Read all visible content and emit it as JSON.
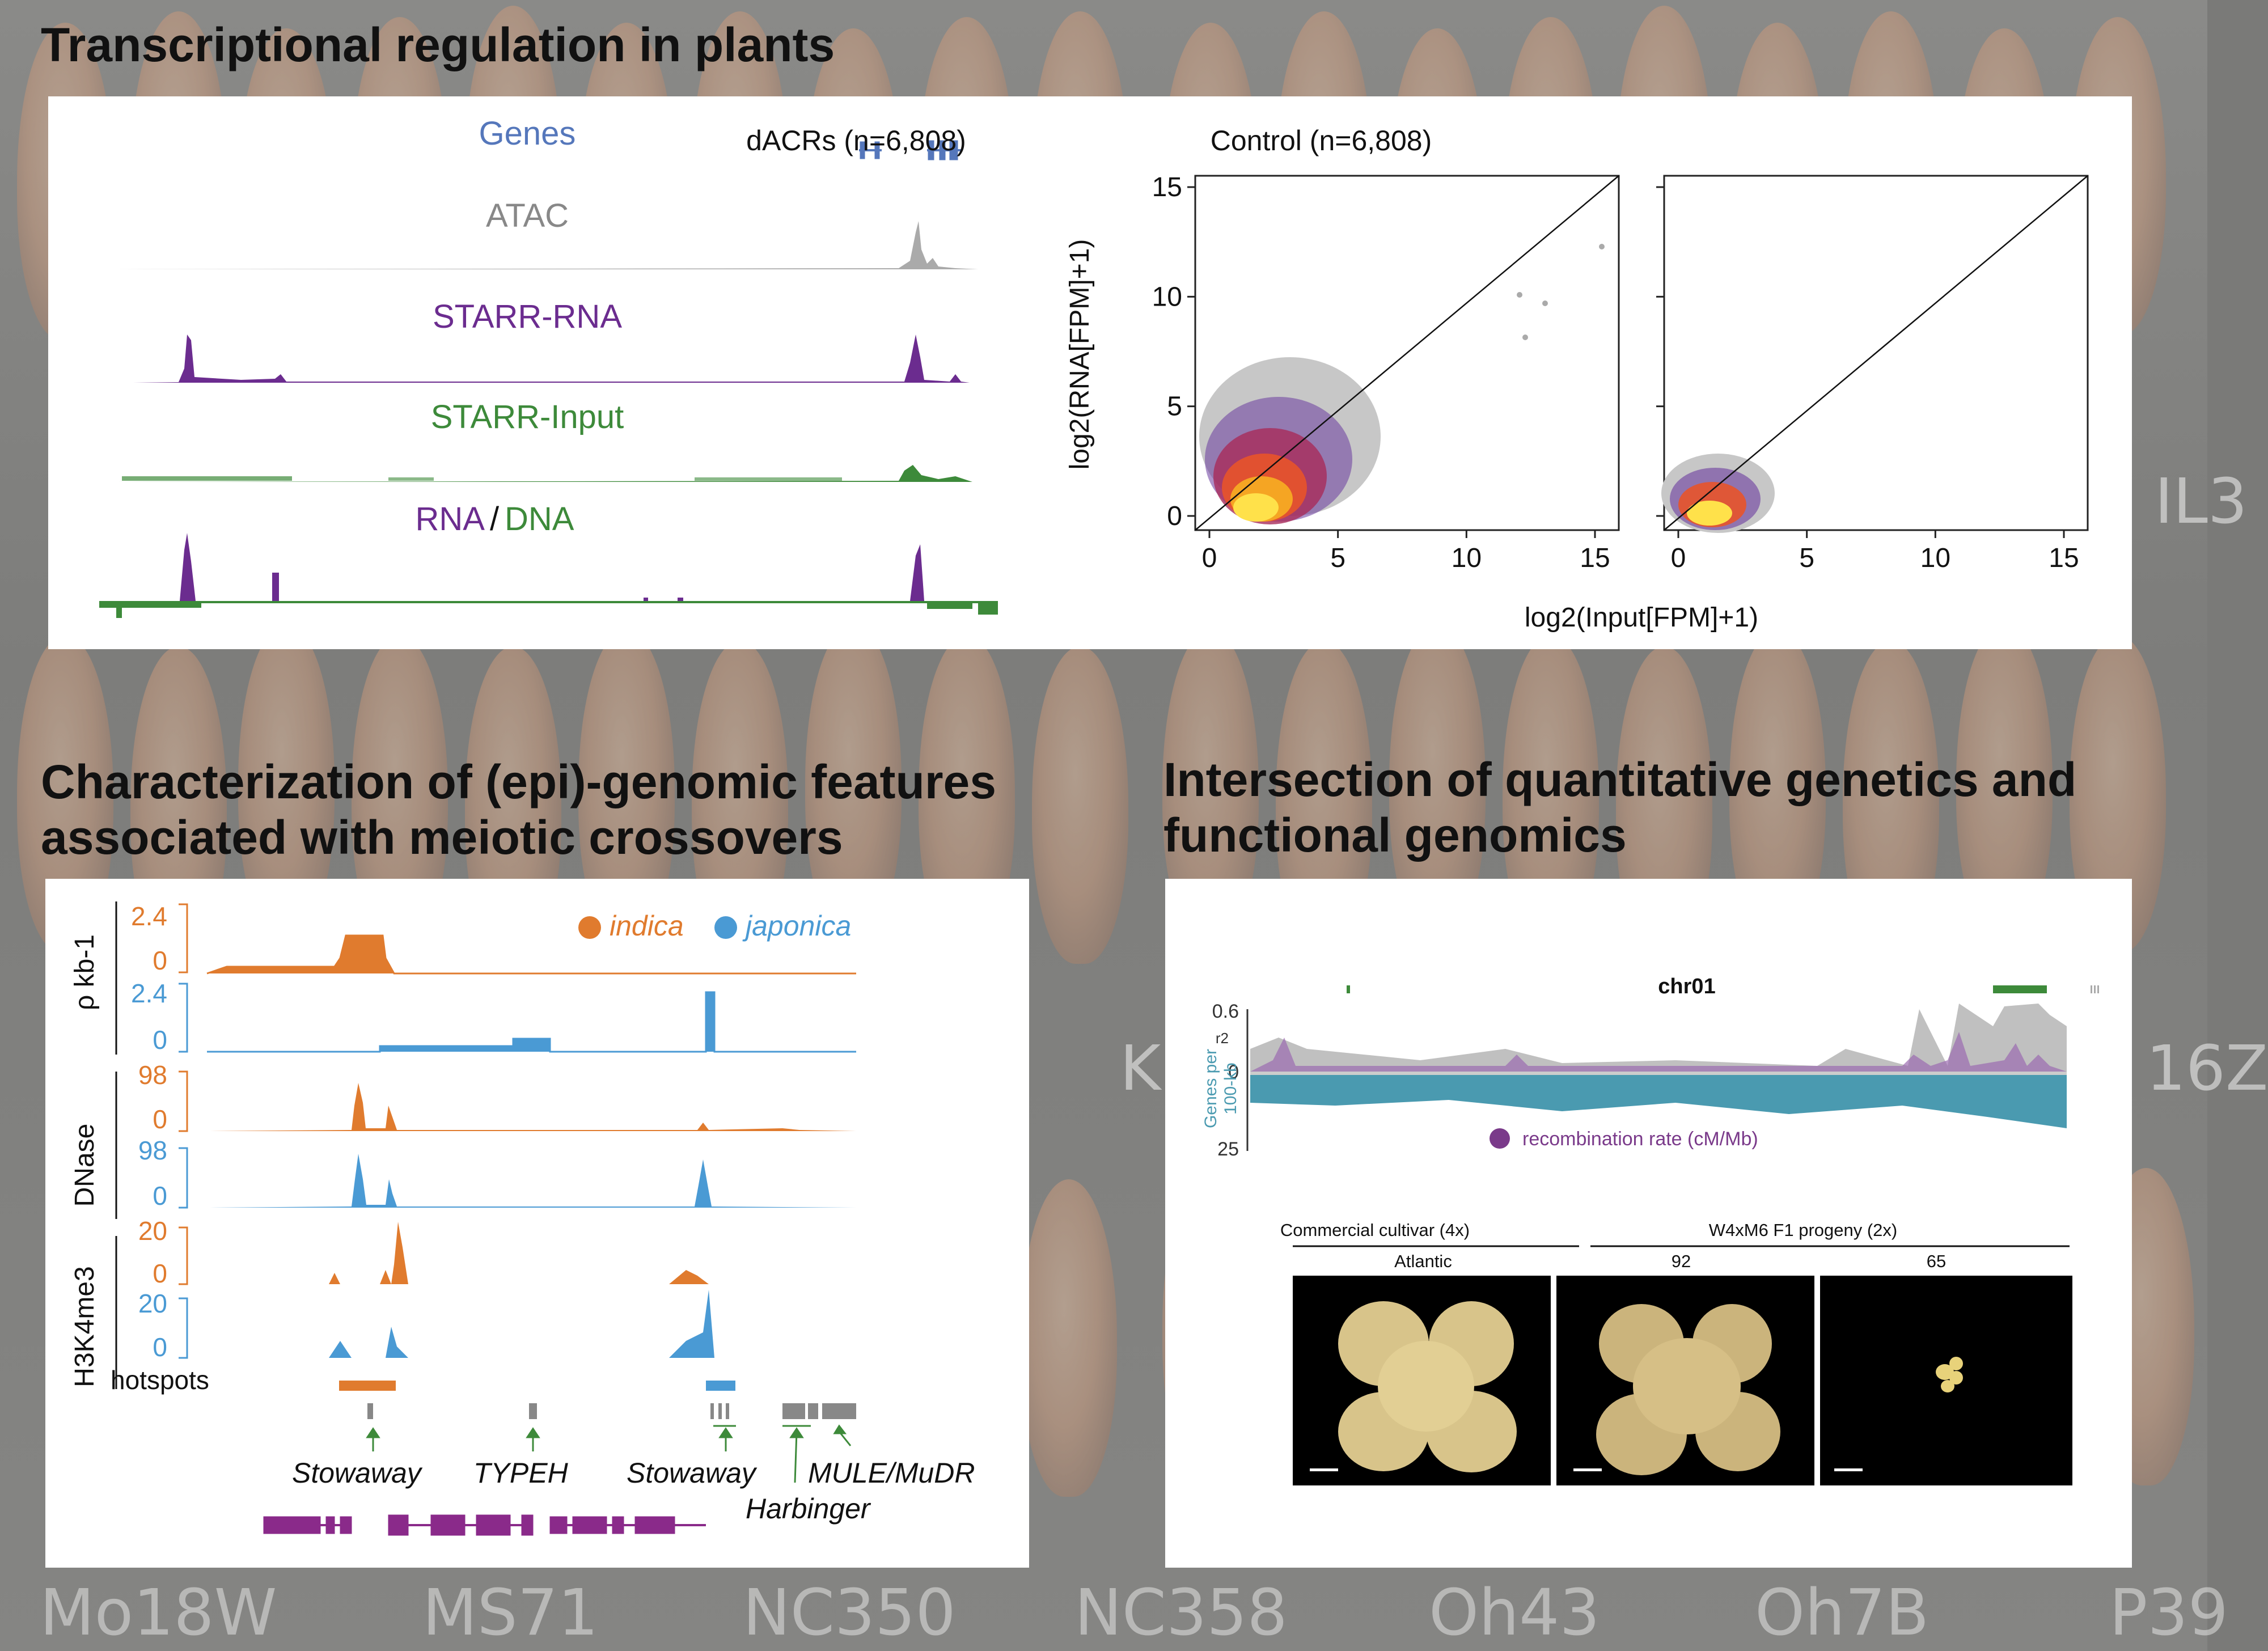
{
  "background": {
    "corn_labels": [
      "Mo18W",
      "MS71",
      "NC350",
      "NC358",
      "Oh43",
      "Oh7B",
      "P39"
    ],
    "side_labels": [
      "IL3",
      "K",
      "16Z"
    ]
  },
  "sections": {
    "top_title": "Transcriptional regulation in plants",
    "left_title_line1": "Characterization of (epi)-genomic features",
    "left_title_line2": "associated with meiotic crossovers",
    "right_title_line1": "Intersection of quantitative genetics and",
    "right_title_line2": "functional genomics"
  },
  "tracks": {
    "genes": "Genes",
    "atac": "ATAC",
    "starr_rna": "STARR-RNA",
    "starr_input": "STARR-Input",
    "rna_label": "RNA",
    "slash": "/",
    "dna_label": "DNA"
  },
  "scatter": {
    "left_title": "dACRs (n=6,808)",
    "right_title": "Control (n=6,808)",
    "ylabel": "log2(RNA[FPM]+1)",
    "xlabel": "log2(Input[FPM]+1)",
    "yticks": [
      "0",
      "5",
      "10",
      "15"
    ],
    "xticks": [
      "0",
      "5",
      "10",
      "15"
    ]
  },
  "crossover": {
    "legend_indica": "indica",
    "legend_japonica": "japonica",
    "rho_label": "ρ kb-1",
    "dnase_label": "DNase",
    "h3k4me3_label": "H3K4me3",
    "hotspots": "hotspots",
    "rho_max": "2.4",
    "dnase_max": "98",
    "h3k_max": "20",
    "zero": "0",
    "te_stowaway1": "Stowaway",
    "te_typeh": "TYPEH",
    "te_stowaway2": "Stowaway",
    "te_harbinger": "Harbinger",
    "te_mule": "MULE/MuDR",
    "colors": {
      "indica": "#e07b2e",
      "japonica": "#4a9ad4"
    }
  },
  "genetics": {
    "chrom": "chr01",
    "r2_label": "r2",
    "r2_max": "0.6",
    "zero": "0",
    "genes_max": "25",
    "genes_label_1": "Genes per",
    "genes_label_2": "100-kb",
    "recomb_legend": "recombination rate (cM/Mb)",
    "group1": "Commercial cultivar (4x)",
    "group2": "W4xM6 F1 progeny (2x)",
    "photo1_label": "Atlantic",
    "photo2_label": "92",
    "photo3_label": "65"
  }
}
